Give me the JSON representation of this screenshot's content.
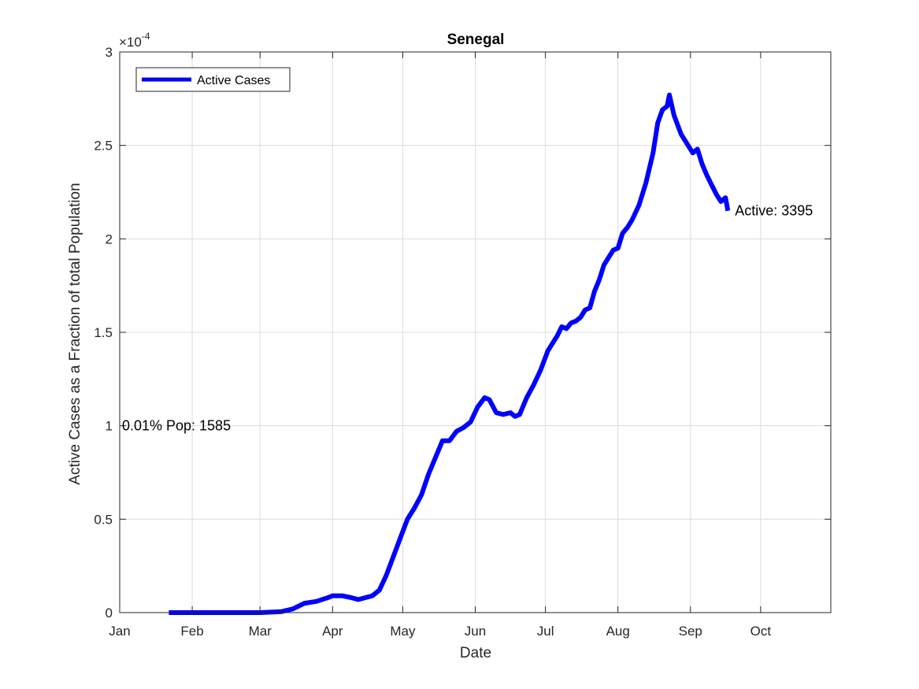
{
  "chart_data": {
    "type": "line",
    "title": "Senegal",
    "xlabel": "Date",
    "ylabel": "Active Cases as a Fraction of total Population",
    "y_exponent_prefix": "×10",
    "y_exponent": "-4",
    "grid": true,
    "legend_position": "top-left",
    "x_range": [
      "2020-01-01",
      "2020-10-31"
    ],
    "ylim": [
      0,
      3
    ],
    "y_ticks": [
      0,
      0.5,
      1,
      1.5,
      2,
      2.5,
      3
    ],
    "y_tick_labels": [
      "0",
      "0.5",
      "1",
      "1.5",
      "2",
      "2.5",
      "3"
    ],
    "x_ticks": [
      "2020-01-01",
      "2020-02-01",
      "2020-03-01",
      "2020-04-01",
      "2020-05-01",
      "2020-06-01",
      "2020-07-01",
      "2020-08-01",
      "2020-09-01",
      "2020-10-01"
    ],
    "x_tick_labels": [
      "Jan",
      "Feb",
      "Mar",
      "Apr",
      "May",
      "Jun",
      "Jul",
      "Aug",
      "Sep",
      "Oct"
    ],
    "series": [
      {
        "name": "Active Cases",
        "color": "#0000ff",
        "x": [
          "2020-01-22",
          "2020-02-15",
          "2020-03-01",
          "2020-03-10",
          "2020-03-15",
          "2020-03-20",
          "2020-03-25",
          "2020-03-30",
          "2020-04-01",
          "2020-04-05",
          "2020-04-09",
          "2020-04-12",
          "2020-04-15",
          "2020-04-18",
          "2020-04-21",
          "2020-04-24",
          "2020-04-27",
          "2020-04-30",
          "2020-05-03",
          "2020-05-06",
          "2020-05-09",
          "2020-05-12",
          "2020-05-15",
          "2020-05-18",
          "2020-05-21",
          "2020-05-24",
          "2020-05-27",
          "2020-05-30",
          "2020-06-02",
          "2020-06-05",
          "2020-06-07",
          "2020-06-10",
          "2020-06-13",
          "2020-06-16",
          "2020-06-18",
          "2020-06-20",
          "2020-06-23",
          "2020-06-26",
          "2020-06-29",
          "2020-07-02",
          "2020-07-04",
          "2020-07-06",
          "2020-07-08",
          "2020-07-10",
          "2020-07-12",
          "2020-07-14",
          "2020-07-16",
          "2020-07-18",
          "2020-07-20",
          "2020-07-22",
          "2020-07-24",
          "2020-07-26",
          "2020-07-28",
          "2020-07-30",
          "2020-08-01",
          "2020-08-03",
          "2020-08-05",
          "2020-08-07",
          "2020-08-10",
          "2020-08-13",
          "2020-08-16",
          "2020-08-18",
          "2020-08-20",
          "2020-08-22",
          "2020-08-23",
          "2020-08-25",
          "2020-08-28",
          "2020-08-31",
          "2020-09-02",
          "2020-09-04",
          "2020-09-06",
          "2020-09-08",
          "2020-09-10",
          "2020-09-12",
          "2020-09-14",
          "2020-09-15",
          "2020-09-16",
          "2020-09-17"
        ],
        "y": [
          0,
          0,
          0,
          0.005,
          0.02,
          0.05,
          0.06,
          0.08,
          0.09,
          0.09,
          0.08,
          0.07,
          0.08,
          0.09,
          0.12,
          0.2,
          0.3,
          0.4,
          0.5,
          0.56,
          0.63,
          0.74,
          0.83,
          0.92,
          0.92,
          0.97,
          0.99,
          1.02,
          1.1,
          1.15,
          1.14,
          1.07,
          1.06,
          1.07,
          1.05,
          1.06,
          1.15,
          1.22,
          1.3,
          1.4,
          1.44,
          1.48,
          1.53,
          1.52,
          1.55,
          1.56,
          1.58,
          1.62,
          1.63,
          1.72,
          1.78,
          1.86,
          1.9,
          1.94,
          1.95,
          2.03,
          2.06,
          2.1,
          2.18,
          2.3,
          2.46,
          2.62,
          2.69,
          2.71,
          2.77,
          2.66,
          2.56,
          2.5,
          2.46,
          2.48,
          2.4,
          2.34,
          2.29,
          2.24,
          2.2,
          2.21,
          2.22,
          2.15
        ]
      }
    ],
    "annotations": [
      {
        "text": "0.01% Pop: 1585",
        "x": "2020-01-02",
        "y": 1.0
      },
      {
        "text": "Active: 3395",
        "x": "2020-09-20",
        "y": 2.15
      }
    ]
  }
}
